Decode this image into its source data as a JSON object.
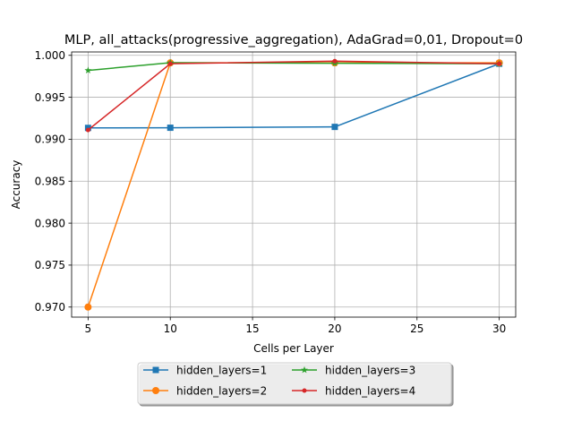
{
  "chart_data": {
    "type": "line",
    "title": "MLP, all_attacks(progressive_aggregation), AdaGrad=0,01, Dropout=0",
    "xlabel": "Cells per Layer",
    "ylabel": "Accuracy",
    "xlim": [
      4,
      31
    ],
    "ylim": [
      0.9688,
      1.0004
    ],
    "xticks": [
      5,
      10,
      15,
      20,
      25,
      30
    ],
    "yticks": [
      0.97,
      0.975,
      0.98,
      0.985,
      0.99,
      0.995,
      1.0
    ],
    "grid": true,
    "legend_position": "below plot, centered, 2 columns",
    "x": [
      5,
      10,
      20,
      30
    ],
    "series": [
      {
        "name": "hidden_layers=1",
        "color": "#1f77b4",
        "marker": "square",
        "values": [
          0.99135,
          0.99137,
          0.99147,
          0.999
        ]
      },
      {
        "name": "hidden_layers=2",
        "color": "#ff7f0e",
        "marker": "circle",
        "values": [
          0.97,
          0.9991,
          0.9991,
          0.9991
        ]
      },
      {
        "name": "hidden_layers=3",
        "color": "#2ca02c",
        "marker": "star",
        "values": [
          0.9982,
          0.99912,
          0.99905,
          0.999
        ]
      },
      {
        "name": "hidden_layers=4",
        "color": "#d62728",
        "marker": "dot",
        "values": [
          0.9911,
          0.999,
          0.9993,
          0.999
        ]
      }
    ]
  }
}
